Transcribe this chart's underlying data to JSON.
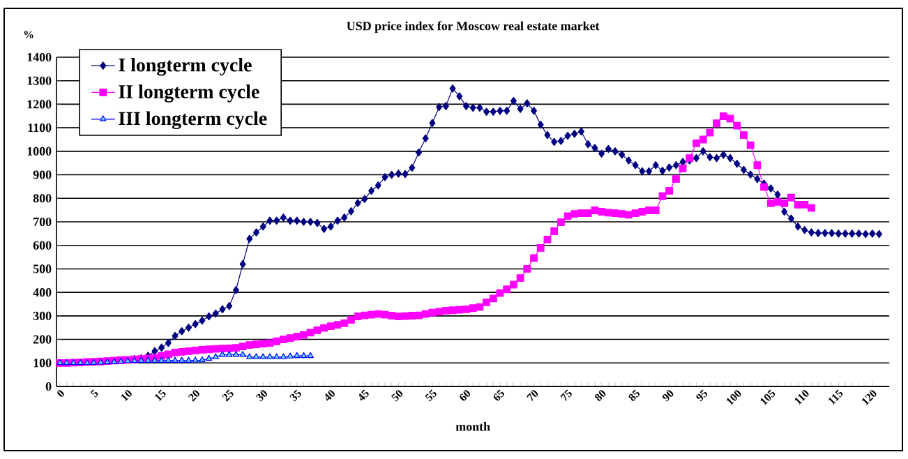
{
  "chart_data": {
    "type": "line",
    "title": "USD price index for Moscow real estate market",
    "xlabel": "month",
    "ylabel": "%",
    "x": [
      0,
      1,
      2,
      3,
      4,
      5,
      6,
      7,
      8,
      9,
      10,
      11,
      12,
      13,
      14,
      15,
      16,
      17,
      18,
      19,
      20,
      21,
      22,
      23,
      24,
      25,
      26,
      27,
      28,
      29,
      30,
      31,
      32,
      33,
      34,
      35,
      36,
      37,
      38,
      39,
      40,
      41,
      42,
      43,
      44,
      45,
      46,
      47,
      48,
      49,
      50,
      51,
      52,
      53,
      54,
      55,
      56,
      57,
      58,
      59,
      60,
      61,
      62,
      63,
      64,
      65,
      66,
      67,
      68,
      69,
      70,
      71,
      72,
      73,
      74,
      75,
      76,
      77,
      78,
      79,
      80,
      81,
      82,
      83,
      84,
      85,
      86,
      87,
      88,
      89,
      90,
      91,
      92,
      93,
      94,
      95,
      96,
      97,
      98,
      99,
      100,
      101,
      102,
      103,
      104,
      105,
      106,
      107,
      108,
      109,
      110,
      111,
      112,
      113,
      114,
      115,
      116,
      117,
      118,
      119,
      120,
      121
    ],
    "series": [
      {
        "name": "I longterm cycle",
        "color": "#000080",
        "marker": "diamond",
        "values": [
          null,
          null,
          null,
          null,
          null,
          null,
          null,
          null,
          null,
          null,
          null,
          117,
          120,
          130,
          150,
          165,
          185,
          215,
          235,
          250,
          265,
          280,
          298,
          310,
          328,
          342,
          410,
          520,
          628,
          655,
          680,
          705,
          705,
          718,
          705,
          705,
          700,
          700,
          695,
          670,
          680,
          705,
          718,
          745,
          780,
          797,
          832,
          855,
          890,
          900,
          905,
          903,
          930,
          995,
          1055,
          1120,
          1188,
          1192,
          1267,
          1234,
          1192,
          1185,
          1185,
          1168,
          1168,
          1172,
          1172,
          1214,
          1180,
          1204,
          1172,
          1113,
          1069,
          1040,
          1044,
          1066,
          1074,
          1084,
          1030,
          1014,
          990,
          1010,
          1000,
          986,
          961,
          941,
          915,
          915,
          941,
          917,
          931,
          941,
          955,
          961,
          971,
          1000,
          975,
          971,
          985,
          971,
          947,
          921,
          901,
          882,
          862,
          842,
          816,
          743,
          714,
          680,
          665,
          655,
          652,
          652,
          652,
          650,
          650,
          650,
          650,
          648,
          650,
          648
        ]
      },
      {
        "name": "II longterm cycle",
        "color": "#ff00ff",
        "marker": "square",
        "values": [
          100,
          100,
          101,
          102,
          104,
          105,
          106,
          108,
          110,
          112,
          113,
          115,
          117,
          119,
          122,
          130,
          137,
          144,
          147,
          150,
          153,
          156,
          158,
          160,
          161,
          162,
          164,
          170,
          176,
          179,
          182,
          184,
          192,
          200,
          206,
          212,
          219,
          229,
          239,
          249,
          256,
          262,
          269,
          283,
          298,
          302,
          305,
          308,
          305,
          301,
          298,
          299,
          301,
          302,
          308,
          314,
          318,
          322,
          324,
          326,
          328,
          333,
          338,
          358,
          374,
          397,
          413,
          433,
          461,
          500,
          546,
          589,
          625,
          660,
          698,
          724,
          734,
          737,
          737,
          749,
          743,
          739,
          737,
          734,
          730,
          737,
          743,
          749,
          749,
          809,
          832,
          882,
          927,
          971,
          1034,
          1050,
          1079,
          1119,
          1149,
          1139,
          1109,
          1069,
          1026,
          941,
          848,
          779,
          785,
          779,
          803,
          773,
          773,
          759,
          null,
          null,
          null,
          null,
          null,
          null,
          null,
          null,
          null,
          null
        ]
      },
      {
        "name": "III longterm cycle",
        "color": "#0000ff",
        "marker": "triangle",
        "values": [
          100,
          100,
          100,
          100,
          100,
          101,
          102,
          103,
          104,
          106,
          108,
          109,
          110,
          110,
          110,
          110,
          110,
          110,
          110,
          110,
          111,
          112,
          118,
          125,
          135,
          135,
          135,
          135,
          125,
          125,
          125,
          125,
          125,
          125,
          128,
          130,
          130,
          130,
          null,
          null,
          null,
          null,
          null,
          null,
          null,
          null,
          null,
          null,
          null,
          null,
          null,
          null,
          null,
          null,
          null,
          null,
          null,
          null,
          null,
          null,
          null,
          null,
          null,
          null,
          null,
          null,
          null,
          null,
          null,
          null,
          null,
          null,
          null,
          null,
          null,
          null,
          null,
          null,
          null,
          null,
          null,
          null,
          null,
          null,
          null,
          null,
          null,
          null,
          null,
          null,
          null,
          null,
          null,
          null,
          null,
          null,
          null,
          null,
          null,
          null,
          null,
          null,
          null,
          null,
          null,
          null,
          null,
          null,
          null,
          null,
          null,
          null,
          null,
          null,
          null,
          null,
          null,
          null,
          null,
          null,
          null,
          null
        ]
      }
    ],
    "xlim": [
      -0.5,
      122.5
    ],
    "xticks": [
      0,
      5,
      10,
      15,
      20,
      25,
      30,
      35,
      40,
      45,
      50,
      55,
      60,
      65,
      70,
      75,
      80,
      85,
      90,
      95,
      100,
      105,
      110,
      115,
      120
    ],
    "ylim": [
      0,
      1400
    ],
    "yticks": [
      0,
      100,
      200,
      300,
      400,
      500,
      600,
      700,
      800,
      900,
      1000,
      1100,
      1200,
      1300,
      1400
    ],
    "grid": "y",
    "legend": "top left",
    "line_style": "solid"
  }
}
